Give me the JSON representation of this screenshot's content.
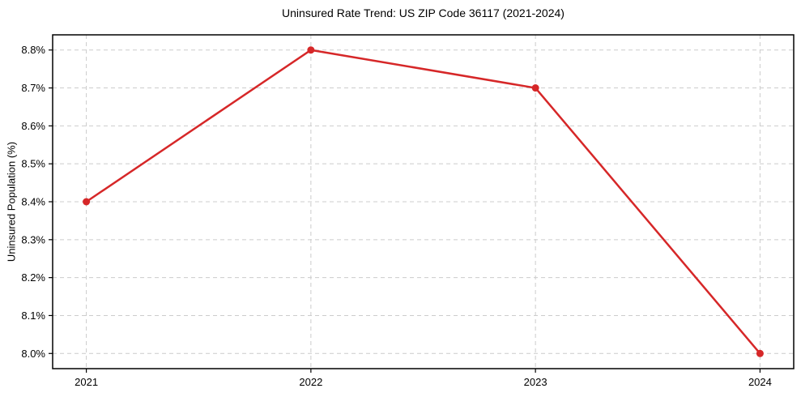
{
  "chart_data": {
    "type": "line",
    "title": "Uninsured Rate Trend: US ZIP Code 36117 (2021-2024)",
    "xlabel": "",
    "ylabel": "Uninsured Population (%)",
    "x": [
      2021,
      2022,
      2023,
      2024
    ],
    "values": [
      8.4,
      8.8,
      8.7,
      8.0
    ],
    "series_name": "Uninsured rate",
    "xtick_labels": [
      "2021",
      "2022",
      "2023",
      "2024"
    ],
    "yticks": [
      8.0,
      8.1,
      8.2,
      8.3,
      8.4,
      8.5,
      8.6,
      8.7,
      8.8
    ],
    "ytick_labels": [
      "8.0%",
      "8.1%",
      "8.2%",
      "8.3%",
      "8.4%",
      "8.5%",
      "8.6%",
      "8.7%",
      "8.8%"
    ],
    "xlim": [
      2020.85,
      2024.15
    ],
    "ylim": [
      7.96,
      8.84
    ],
    "grid": true,
    "grid_style": "dashed",
    "legend": false,
    "colors": {
      "line": "#d62728",
      "marker": "#d62728",
      "grid": "#cccccc",
      "spine": "#000000",
      "text": "#000000",
      "background": "#ffffff"
    }
  }
}
